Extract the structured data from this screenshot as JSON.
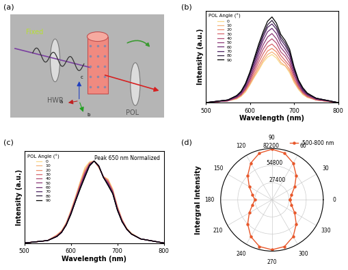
{
  "diagram": {
    "panel": "(a)",
    "beam_label": "Fixed",
    "hwp": "HWP",
    "pol": "POL",
    "axes": [
      "a",
      "b",
      "c"
    ]
  },
  "chart_data": [
    {
      "type": "line",
      "panel": "(b)",
      "xlabel": "Wavelength (nm)",
      "ylabel": "Intensity (a.u.)",
      "x": [
        500,
        550,
        570,
        580,
        590,
        600,
        610,
        620,
        630,
        640,
        650,
        660,
        670,
        680,
        690,
        700,
        710,
        720,
        730,
        750,
        800
      ],
      "xlim": [
        500,
        800
      ],
      "xticks": [
        500,
        600,
        700,
        800
      ],
      "ylim": [
        0,
        1.05
      ],
      "tick_labels": "x",
      "legend": "upper left",
      "legend_title": "POL Angle (°)",
      "series": [
        {
          "name": "0",
          "color": "#f9d98a",
          "values": [
            0,
            0.02,
            0.04,
            0.07,
            0.12,
            0.2,
            0.29,
            0.37,
            0.46,
            0.52,
            0.55,
            0.51,
            0.44,
            0.42,
            0.34,
            0.23,
            0.15,
            0.09,
            0.06,
            0.03,
            0
          ]
        },
        {
          "name": "10",
          "color": "#f7b27a",
          "values": [
            0,
            0.02,
            0.05,
            0.08,
            0.13,
            0.21,
            0.3,
            0.39,
            0.48,
            0.55,
            0.58,
            0.54,
            0.46,
            0.42,
            0.36,
            0.24,
            0.16,
            0.1,
            0.06,
            0.03,
            0
          ]
        },
        {
          "name": "20",
          "color": "#ee8a68",
          "values": [
            0,
            0.02,
            0.05,
            0.08,
            0.14,
            0.22,
            0.32,
            0.42,
            0.51,
            0.59,
            0.62,
            0.58,
            0.5,
            0.45,
            0.38,
            0.26,
            0.17,
            0.11,
            0.07,
            0.03,
            0
          ]
        },
        {
          "name": "30",
          "color": "#d7646b",
          "values": [
            0,
            0.02,
            0.05,
            0.09,
            0.15,
            0.24,
            0.35,
            0.46,
            0.56,
            0.64,
            0.67,
            0.62,
            0.54,
            0.48,
            0.42,
            0.28,
            0.18,
            0.11,
            0.07,
            0.03,
            0
          ]
        },
        {
          "name": "40",
          "color": "#b44a72",
          "values": [
            0,
            0.02,
            0.06,
            0.09,
            0.16,
            0.26,
            0.38,
            0.5,
            0.61,
            0.69,
            0.73,
            0.68,
            0.58,
            0.53,
            0.45,
            0.31,
            0.2,
            0.12,
            0.08,
            0.04,
            0
          ]
        },
        {
          "name": "50",
          "color": "#8d3776",
          "values": [
            0,
            0.02,
            0.06,
            0.1,
            0.17,
            0.28,
            0.41,
            0.54,
            0.66,
            0.75,
            0.79,
            0.73,
            0.63,
            0.57,
            0.49,
            0.33,
            0.21,
            0.13,
            0.09,
            0.04,
            0
          ]
        },
        {
          "name": "60",
          "color": "#6b2a72",
          "values": [
            0,
            0.03,
            0.07,
            0.11,
            0.19,
            0.31,
            0.44,
            0.58,
            0.71,
            0.81,
            0.85,
            0.79,
            0.68,
            0.61,
            0.53,
            0.36,
            0.23,
            0.14,
            0.09,
            0.04,
            0
          ]
        },
        {
          "name": "70",
          "color": "#4a2060",
          "values": [
            0,
            0.03,
            0.07,
            0.12,
            0.2,
            0.32,
            0.47,
            0.61,
            0.75,
            0.86,
            0.9,
            0.84,
            0.72,
            0.65,
            0.56,
            0.38,
            0.24,
            0.15,
            0.1,
            0.05,
            0
          ]
        },
        {
          "name": "80",
          "color": "#2a1838",
          "values": [
            0,
            0.03,
            0.08,
            0.12,
            0.21,
            0.34,
            0.49,
            0.64,
            0.78,
            0.89,
            0.94,
            0.87,
            0.75,
            0.68,
            0.58,
            0.39,
            0.25,
            0.16,
            0.1,
            0.05,
            0
          ]
        },
        {
          "name": "90",
          "color": "#000000",
          "values": [
            0,
            0.03,
            0.08,
            0.13,
            0.22,
            0.35,
            0.51,
            0.67,
            0.81,
            0.93,
            0.98,
            0.91,
            0.78,
            0.71,
            0.61,
            0.41,
            0.26,
            0.17,
            0.11,
            0.05,
            0
          ]
        }
      ]
    },
    {
      "type": "line",
      "panel": "(c)",
      "xlabel": "Wavelength (nm)",
      "ylabel": "Intensity (a.u.)",
      "annotation": "Peak 650 nm Normalized",
      "x": [
        500,
        550,
        570,
        580,
        590,
        600,
        610,
        620,
        630,
        640,
        650,
        660,
        670,
        680,
        690,
        700,
        710,
        720,
        730,
        750,
        800
      ],
      "xlim": [
        500,
        800
      ],
      "xticks": [
        500,
        600,
        700,
        800
      ],
      "ylim": [
        0,
        1.12
      ],
      "tick_labels": "x",
      "legend": "upper left",
      "legend_title": "POL Angle (°)",
      "series": [
        {
          "name": "0",
          "color": "#f9d98a",
          "values": [
            0,
            0.03,
            0.1,
            0.15,
            0.25,
            0.4,
            0.57,
            0.75,
            0.92,
            0.99,
            1.0,
            0.92,
            0.81,
            0.78,
            0.66,
            0.45,
            0.29,
            0.18,
            0.12,
            0.05,
            0
          ]
        },
        {
          "name": "10",
          "color": "#f7b27a",
          "values": [
            0,
            0.03,
            0.1,
            0.15,
            0.24,
            0.39,
            0.56,
            0.74,
            0.9,
            0.98,
            1.0,
            0.92,
            0.81,
            0.77,
            0.65,
            0.44,
            0.29,
            0.18,
            0.12,
            0.05,
            0
          ]
        },
        {
          "name": "20",
          "color": "#ee8a68",
          "values": [
            0,
            0.03,
            0.09,
            0.14,
            0.24,
            0.38,
            0.55,
            0.72,
            0.88,
            0.97,
            1.0,
            0.93,
            0.81,
            0.76,
            0.64,
            0.44,
            0.28,
            0.18,
            0.11,
            0.05,
            0
          ]
        },
        {
          "name": "30",
          "color": "#d7646b",
          "values": [
            0,
            0.03,
            0.09,
            0.14,
            0.23,
            0.38,
            0.54,
            0.71,
            0.86,
            0.97,
            1.0,
            0.93,
            0.81,
            0.75,
            0.63,
            0.43,
            0.28,
            0.17,
            0.11,
            0.05,
            0
          ]
        },
        {
          "name": "40",
          "color": "#b44a72",
          "values": [
            0,
            0.03,
            0.09,
            0.14,
            0.23,
            0.37,
            0.53,
            0.7,
            0.85,
            0.96,
            1.0,
            0.93,
            0.8,
            0.74,
            0.63,
            0.42,
            0.27,
            0.17,
            0.11,
            0.05,
            0
          ]
        },
        {
          "name": "50",
          "color": "#8d3776",
          "values": [
            0,
            0.03,
            0.08,
            0.13,
            0.23,
            0.37,
            0.53,
            0.69,
            0.84,
            0.96,
            1.0,
            0.94,
            0.8,
            0.73,
            0.62,
            0.42,
            0.27,
            0.17,
            0.11,
            0.05,
            0
          ]
        },
        {
          "name": "60",
          "color": "#6b2a72",
          "values": [
            0,
            0.03,
            0.08,
            0.13,
            0.22,
            0.36,
            0.52,
            0.68,
            0.83,
            0.95,
            1.0,
            0.94,
            0.8,
            0.72,
            0.61,
            0.41,
            0.27,
            0.17,
            0.11,
            0.05,
            0
          ]
        },
        {
          "name": "70",
          "color": "#4a2060",
          "values": [
            0,
            0.03,
            0.08,
            0.13,
            0.22,
            0.36,
            0.52,
            0.67,
            0.82,
            0.95,
            1.0,
            0.94,
            0.8,
            0.71,
            0.61,
            0.41,
            0.26,
            0.17,
            0.11,
            0.05,
            0
          ]
        },
        {
          "name": "80",
          "color": "#2a1838",
          "values": [
            0,
            0.03,
            0.08,
            0.13,
            0.22,
            0.35,
            0.51,
            0.67,
            0.81,
            0.94,
            1.0,
            0.94,
            0.8,
            0.71,
            0.6,
            0.4,
            0.26,
            0.17,
            0.11,
            0.05,
            0
          ]
        },
        {
          "name": "90",
          "color": "#000000",
          "values": [
            0,
            0.03,
            0.08,
            0.13,
            0.22,
            0.35,
            0.51,
            0.66,
            0.8,
            0.94,
            1.0,
            0.94,
            0.8,
            0.7,
            0.6,
            0.4,
            0.26,
            0.17,
            0.11,
            0.05,
            0
          ]
        }
      ]
    },
    {
      "type": "polar",
      "panel": "(d)",
      "ylabel": "Intergral Intensity",
      "x": [
        0,
        15,
        30,
        45,
        60,
        75,
        90,
        105,
        120,
        135,
        150,
        165,
        180,
        195,
        210,
        225,
        240,
        255,
        270,
        285,
        300,
        315,
        330,
        345,
        360
      ],
      "xlim": [
        0,
        360
      ],
      "xticks": [
        0,
        30,
        60,
        90,
        120,
        150,
        180,
        210,
        240,
        270,
        300,
        330
      ],
      "ylim": [
        0,
        82200
      ],
      "yticks": [
        27400,
        54800,
        82200
      ],
      "legend": "upper right",
      "series": [
        {
          "name": "500-800 nm",
          "color": "#e8572a",
          "marker": "o",
          "line_style": "solid",
          "values": [
            29000,
            32500,
            42000,
            55000,
            68000,
            77500,
            81000,
            77500,
            68000,
            55000,
            42000,
            32500,
            27500,
            32500,
            42000,
            55000,
            68000,
            77500,
            80000,
            77500,
            68000,
            55000,
            42000,
            32500,
            29000
          ]
        }
      ]
    }
  ]
}
